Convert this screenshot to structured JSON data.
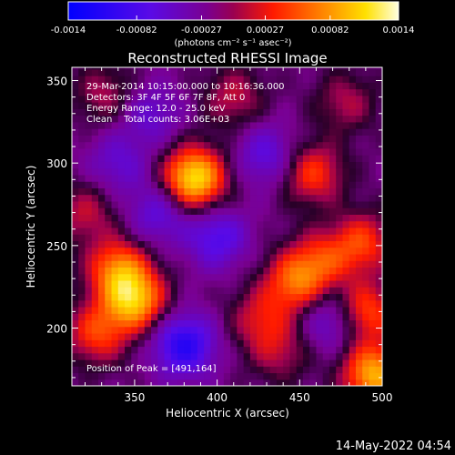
{
  "chart_data": {
    "type": "heatmap",
    "title": "Reconstructed RHESSI Image",
    "xlabel": "Heliocentric X (arcsec)",
    "ylabel": "Heliocentric Y (arcsec)",
    "xlim": [
      312,
      500
    ],
    "ylim": [
      165,
      358
    ],
    "x_ticks": [
      350,
      400,
      450,
      500
    ],
    "y_ticks": [
      200,
      250,
      300,
      350
    ],
    "colorbar": {
      "colormap": "blue-purple-red-yellow-white",
      "range": [
        -0.0014,
        0.0014
      ],
      "tick_values": [
        -0.0014,
        -0.00082,
        -0.00027,
        0.00027,
        0.00082,
        0.0014
      ],
      "tick_labels": [
        "-0.0014",
        "-0.00082",
        "-0.00027",
        "0.00027",
        "0.00082",
        "0.0014"
      ],
      "unit_label": "(photons cm⁻² s⁻¹ asec⁻²)"
    },
    "annotations": [
      "29-Mar-2014 10:15:00.000 to 10:16:36.000",
      "Detectors: 3F 4F 5F 6F 7F 8F, Att 0",
      "Energy Range: 12.0 - 25.0 keV",
      "Clean    Total counts: 3.06E+03"
    ],
    "peak_label": "Position of Peak = [491,164]",
    "peak_position": [
      491,
      164
    ],
    "sources": [
      {
        "x": 386,
        "y": 291,
        "value": 0.0014
      },
      {
        "x": 350,
        "y": 217,
        "value": 0.00115
      },
      {
        "x": 340,
        "y": 236,
        "value": 0.0009
      },
      {
        "x": 327,
        "y": 197,
        "value": 0.0007
      },
      {
        "x": 495,
        "y": 172,
        "value": 0.00115
      },
      {
        "x": 490,
        "y": 210,
        "value": 0.0008
      },
      {
        "x": 488,
        "y": 252,
        "value": 0.0007
      },
      {
        "x": 463,
        "y": 241,
        "value": 0.0006
      },
      {
        "x": 447,
        "y": 228,
        "value": 0.0008
      },
      {
        "x": 458,
        "y": 294,
        "value": 0.0007
      },
      {
        "x": 426,
        "y": 206,
        "value": 0.0005
      },
      {
        "x": 410,
        "y": 340,
        "value": 0.00045
      },
      {
        "x": 478,
        "y": 337,
        "value": 0.0004
      },
      {
        "x": 332,
        "y": 342,
        "value": 0.0004
      },
      {
        "x": 438,
        "y": 186,
        "value": 0.0004
      },
      {
        "x": 320,
        "y": 270,
        "value": 0.00045
      },
      {
        "x": 380,
        "y": 190,
        "value": -0.0009
      },
      {
        "x": 400,
        "y": 255,
        "value": -0.0006
      },
      {
        "x": 430,
        "y": 305,
        "value": -0.0005
      },
      {
        "x": 365,
        "y": 270,
        "value": -0.0005
      },
      {
        "x": 360,
        "y": 330,
        "value": -0.0004
      },
      {
        "x": 470,
        "y": 205,
        "value": -0.0005
      },
      {
        "x": 340,
        "y": 300,
        "value": -0.0004
      }
    ]
  },
  "timestamp": "14-May-2022 04:54"
}
